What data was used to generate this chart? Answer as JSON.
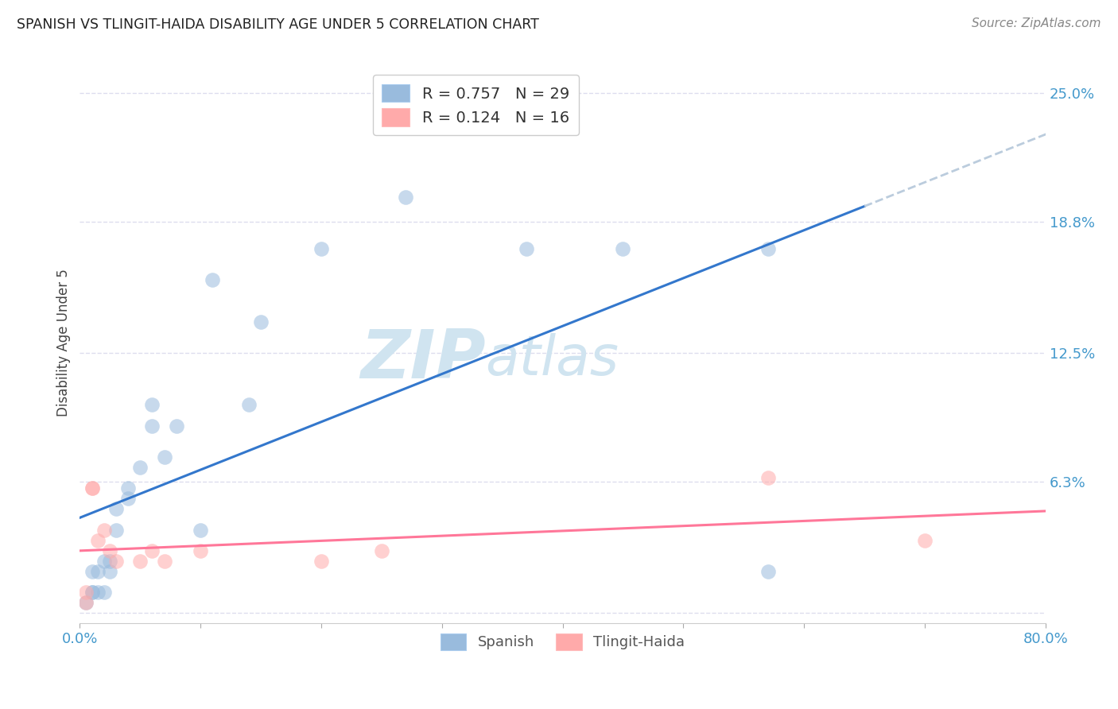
{
  "title": "SPANISH VS TLINGIT-HAIDA DISABILITY AGE UNDER 5 CORRELATION CHART",
  "source": "Source: ZipAtlas.com",
  "ylabel": "Disability Age Under 5",
  "xlim": [
    0.0,
    0.8
  ],
  "ylim": [
    -0.005,
    0.265
  ],
  "yticks": [
    0.0,
    0.063,
    0.125,
    0.188,
    0.25
  ],
  "ytick_labels": [
    "",
    "6.3%",
    "12.5%",
    "18.8%",
    "25.0%"
  ],
  "xticks": [
    0.0,
    0.1,
    0.2,
    0.3,
    0.4,
    0.5,
    0.6,
    0.7,
    0.8
  ],
  "xtick_labels": [
    "0.0%",
    "",
    "",
    "",
    "",
    "",
    "",
    "",
    "80.0%"
  ],
  "spanish_x": [
    0.005,
    0.01,
    0.01,
    0.01,
    0.015,
    0.015,
    0.02,
    0.02,
    0.025,
    0.025,
    0.03,
    0.03,
    0.04,
    0.04,
    0.05,
    0.06,
    0.06,
    0.07,
    0.08,
    0.1,
    0.11,
    0.14,
    0.15,
    0.2,
    0.27,
    0.37,
    0.45,
    0.57,
    0.57
  ],
  "spanish_y": [
    0.005,
    0.01,
    0.01,
    0.02,
    0.02,
    0.01,
    0.01,
    0.025,
    0.02,
    0.025,
    0.04,
    0.05,
    0.06,
    0.055,
    0.07,
    0.09,
    0.1,
    0.075,
    0.09,
    0.04,
    0.16,
    0.1,
    0.14,
    0.175,
    0.2,
    0.175,
    0.175,
    0.02,
    0.175
  ],
  "tlingit_x": [
    0.005,
    0.005,
    0.01,
    0.01,
    0.015,
    0.02,
    0.025,
    0.03,
    0.05,
    0.06,
    0.07,
    0.1,
    0.2,
    0.25,
    0.57,
    0.7
  ],
  "tlingit_y": [
    0.005,
    0.01,
    0.06,
    0.06,
    0.035,
    0.04,
    0.03,
    0.025,
    0.025,
    0.03,
    0.025,
    0.03,
    0.025,
    0.03,
    0.065,
    0.035
  ],
  "spanish_R": 0.757,
  "spanish_N": 29,
  "tlingit_R": 0.124,
  "tlingit_N": 16,
  "spanish_color": "#99BBDD",
  "tlingit_color": "#FFAAAA",
  "spanish_line_color": "#3377CC",
  "tlingit_line_color": "#FF7799",
  "dash_line_color": "#BBCCDD",
  "dot_size": 180,
  "dot_alpha": 0.55,
  "watermark_zip": "ZIP",
  "watermark_atlas": "atlas",
  "watermark_color": "#D0E4F0",
  "background_color": "#FFFFFF",
  "grid_color": "#DDDDEE",
  "title_color": "#222222",
  "axis_label_color": "#444444",
  "tick_label_color": "#4499CC",
  "source_color": "#888888",
  "legend_r_color": "#4499CC",
  "legend_n_color": "#CC4400"
}
